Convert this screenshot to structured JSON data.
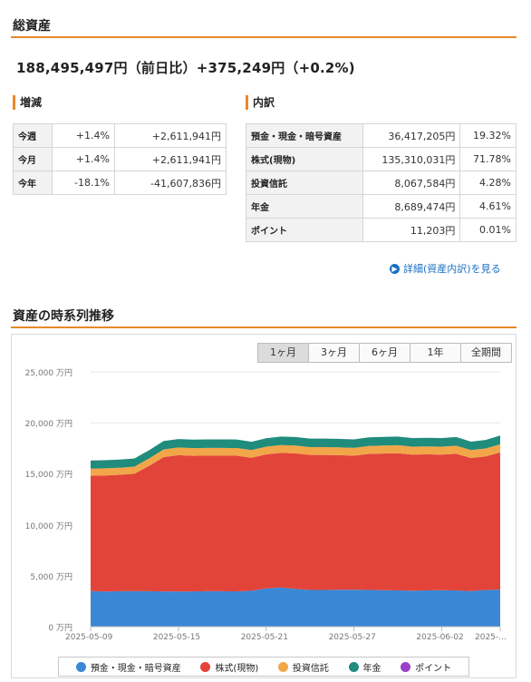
{
  "header": {
    "title": "総資産"
  },
  "summary": {
    "total_line": "188,495,497円（前日比）+375,249円（+0.2%)"
  },
  "change": {
    "title": "増減",
    "rows": [
      {
        "label": "今週",
        "pct": "+1.4%",
        "amount": "+2,611,941円"
      },
      {
        "label": "今月",
        "pct": "+1.4%",
        "amount": "+2,611,941円"
      },
      {
        "label": "今年",
        "pct": "-18.1%",
        "amount": "-41,607,836円"
      }
    ]
  },
  "breakdown": {
    "title": "内訳",
    "rows": [
      {
        "label": "預金・現金・暗号資産",
        "amount": "36,417,205円",
        "pct": "19.32%"
      },
      {
        "label": "株式(現物)",
        "amount": "135,310,031円",
        "pct": "71.78%"
      },
      {
        "label": "投資信託",
        "amount": "8,067,584円",
        "pct": "4.28%"
      },
      {
        "label": "年金",
        "amount": "8,689,474円",
        "pct": "4.61%"
      },
      {
        "label": "ポイント",
        "amount": "11,203円",
        "pct": "0.01%"
      }
    ],
    "detail_link": "詳細(資産内訳)を見る"
  },
  "timeseries": {
    "title": "資産の時系列推移",
    "ranges": [
      "1ヶ月",
      "3ヶ月",
      "6ヶ月",
      "1年",
      "全期間"
    ],
    "active_range": "1ヶ月"
  },
  "chart_data": {
    "type": "area",
    "stacked": true,
    "y_unit": "万円",
    "ylim": [
      0,
      25000
    ],
    "y_ticks": [
      0,
      5000,
      10000,
      15000,
      20000,
      25000
    ],
    "y_tick_labels": [
      "0 万円",
      "5,000 万円",
      "10,000 万円",
      "15,000 万円",
      "20,000 万円",
      "25,000 万円"
    ],
    "x": [
      "2025-05-09",
      "2025-05-10",
      "2025-05-11",
      "2025-05-12",
      "2025-05-13",
      "2025-05-14",
      "2025-05-15",
      "2025-05-16",
      "2025-05-17",
      "2025-05-18",
      "2025-05-19",
      "2025-05-20",
      "2025-05-21",
      "2025-05-22",
      "2025-05-23",
      "2025-05-24",
      "2025-05-25",
      "2025-05-26",
      "2025-05-27",
      "2025-05-28",
      "2025-05-29",
      "2025-05-30",
      "2025-05-31",
      "2025-06-01",
      "2025-06-02",
      "2025-06-03",
      "2025-06-04",
      "2025-06-05",
      "2025-06-06"
    ],
    "x_tick_labels": [
      "2025-05-09",
      "2025-05-15",
      "2025-05-21",
      "2025-05-27",
      "2025-06-02",
      "2025-…"
    ],
    "series": [
      {
        "name": "預金・現金・暗号資産",
        "color": "#3a87d6",
        "values": [
          3500,
          3450,
          3480,
          3500,
          3480,
          3460,
          3440,
          3460,
          3480,
          3480,
          3470,
          3520,
          3750,
          3850,
          3700,
          3600,
          3600,
          3620,
          3620,
          3600,
          3580,
          3560,
          3540,
          3560,
          3580,
          3560,
          3500,
          3600,
          3640
        ]
      },
      {
        "name": "株式(現物)",
        "color": "#e2443a",
        "values": [
          11300,
          11380,
          11420,
          11500,
          12300,
          13180,
          13380,
          13300,
          13300,
          13300,
          13300,
          13050,
          13150,
          13200,
          13300,
          13250,
          13250,
          13200,
          13150,
          13350,
          13400,
          13450,
          13340,
          13340,
          13300,
          13400,
          13050,
          13100,
          13450
        ]
      },
      {
        "name": "投資信託",
        "color": "#f2a64a",
        "values": [
          700,
          700,
          700,
          700,
          720,
          750,
          760,
          760,
          760,
          760,
          760,
          750,
          760,
          770,
          770,
          770,
          770,
          770,
          770,
          780,
          790,
          790,
          780,
          780,
          780,
          790,
          770,
          780,
          800
        ]
      },
      {
        "name": "年金",
        "color": "#1f8c7c",
        "values": [
          800,
          800,
          800,
          800,
          810,
          830,
          830,
          830,
          830,
          830,
          830,
          820,
          830,
          830,
          830,
          830,
          830,
          830,
          830,
          840,
          850,
          850,
          840,
          840,
          840,
          850,
          830,
          840,
          860
        ]
      },
      {
        "name": "ポイント",
        "color": "#9b3fc8",
        "values": [
          1,
          1,
          1,
          1,
          1,
          1,
          1,
          1,
          1,
          1,
          1,
          1,
          1,
          1,
          1,
          1,
          1,
          1,
          1,
          1,
          1,
          1,
          1,
          1,
          1,
          1,
          1,
          1,
          1
        ]
      }
    ]
  }
}
